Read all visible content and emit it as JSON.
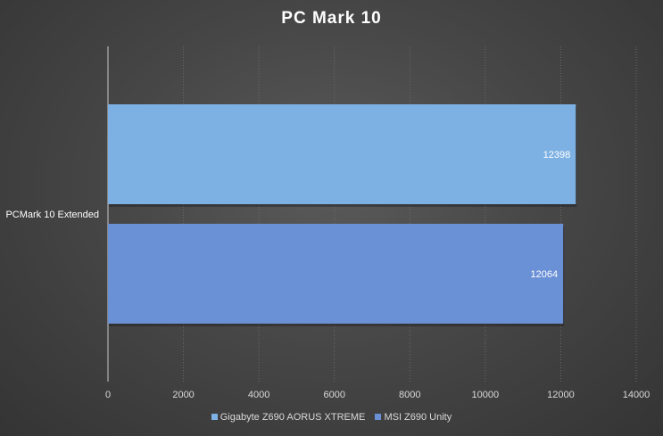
{
  "chart_data": {
    "type": "bar",
    "orientation": "horizontal",
    "title": "PC Mark  10",
    "categories": [
      "PCMark 10 Extended"
    ],
    "series": [
      {
        "name": "Gigabyte Z690 AORUS XTREME",
        "values": [
          12398
        ],
        "color": "#7eb1e3"
      },
      {
        "name": "MSI Z690 Unity",
        "values": [
          12064
        ],
        "color": "#6a90d6"
      }
    ],
    "xlim": [
      0,
      14000
    ],
    "x_ticks": [
      "0",
      "2000",
      "4000",
      "6000",
      "8000",
      "10000",
      "12000",
      "14000"
    ],
    "grid": true,
    "legend_position": "bottom",
    "data_labels": [
      "12398",
      "12064"
    ]
  }
}
